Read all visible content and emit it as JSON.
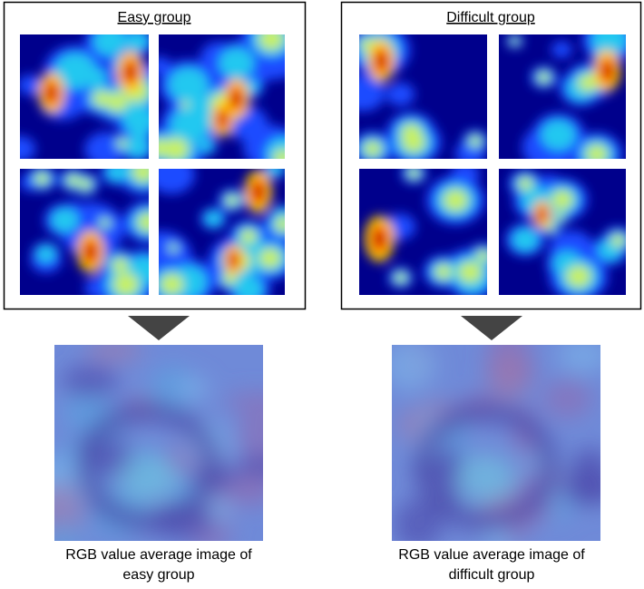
{
  "panels": [
    {
      "title": "Easy group",
      "caption": [
        "RGB value average image of",
        "easy group"
      ]
    },
    {
      "title": "Difficult group",
      "caption": [
        "RGB value average image of",
        "difficult group"
      ]
    }
  ]
}
